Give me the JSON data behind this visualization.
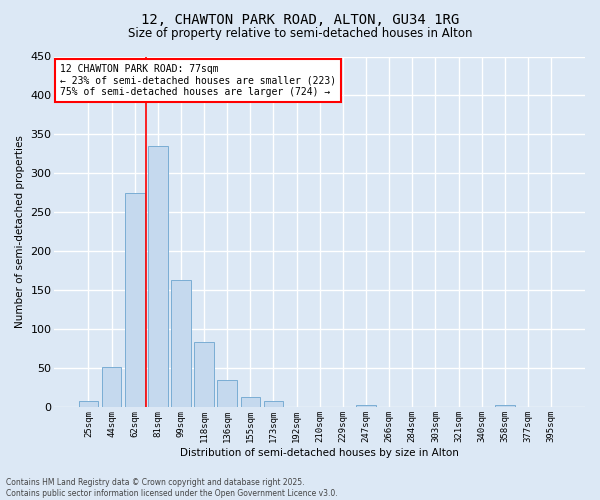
{
  "title1": "12, CHAWTON PARK ROAD, ALTON, GU34 1RG",
  "title2": "Size of property relative to semi-detached houses in Alton",
  "xlabel": "Distribution of semi-detached houses by size in Alton",
  "ylabel": "Number of semi-detached properties",
  "categories": [
    "25sqm",
    "44sqm",
    "62sqm",
    "81sqm",
    "99sqm",
    "118sqm",
    "136sqm",
    "155sqm",
    "173sqm",
    "192sqm",
    "210sqm",
    "229sqm",
    "247sqm",
    "266sqm",
    "284sqm",
    "303sqm",
    "321sqm",
    "340sqm",
    "358sqm",
    "377sqm",
    "395sqm"
  ],
  "values": [
    7,
    51,
    275,
    335,
    163,
    83,
    35,
    13,
    7,
    0,
    0,
    0,
    3,
    0,
    0,
    0,
    0,
    0,
    3,
    0,
    0
  ],
  "bar_color": "#c5d9ee",
  "bar_edge_color": "#7aadd4",
  "background_color": "#dce8f5",
  "grid_color": "#ffffff",
  "property_label": "12 CHAWTON PARK ROAD: 77sqm",
  "pct_smaller": 23,
  "pct_smaller_count": 223,
  "pct_larger": 75,
  "pct_larger_count": 724,
  "footer": "Contains HM Land Registry data © Crown copyright and database right 2025.\nContains public sector information licensed under the Open Government Licence v3.0.",
  "ylim": [
    0,
    450
  ],
  "yticks": [
    0,
    50,
    100,
    150,
    200,
    250,
    300,
    350,
    400,
    450
  ]
}
